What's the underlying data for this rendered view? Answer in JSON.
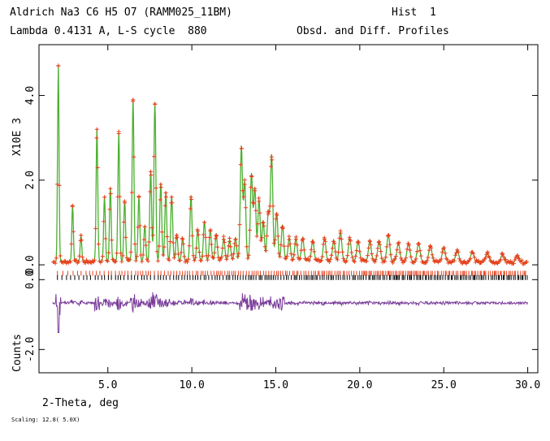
{
  "header": {
    "title_left": "Aldrich Na3 C6 H5 O7 (RAMM025_11BM)",
    "title_right": "Hist  1",
    "sub_left": "Lambda 0.4131 A, L-S cycle  880",
    "sub_right": "Obsd. and Diff. Profiles"
  },
  "footer": {
    "scaling": "Scaling: 12.8( 5.0X)"
  },
  "chart_data": {
    "type": "line",
    "xlabel": "2-Theta, deg",
    "ylabel_upper": "X10E  3",
    "ylabel_lower": "Counts",
    "xlim": [
      0.9,
      30.6
    ],
    "ylim": [
      -2.55,
      5.2
    ],
    "x_ticks": [
      "5.0",
      "10.0",
      "15.0",
      "20.0",
      "25.0",
      "30.0"
    ],
    "y_ticks": [
      "4.0",
      "2.0",
      "0.0",
      "0.0",
      "-2.0"
    ],
    "grid": false,
    "colors": {
      "observed": "#e8401c",
      "calculated": "#4cb030",
      "difference": "#7a3d9a",
      "ticks_phase1": "#e8401c",
      "ticks_phase2": "#000000"
    },
    "series": [
      {
        "role": "observed-calculated-profile",
        "baseline": 0.06,
        "peaks": [
          [
            2.05,
            4.7
          ],
          [
            2.9,
            1.4
          ],
          [
            3.4,
            0.7
          ],
          [
            4.35,
            3.2
          ],
          [
            4.8,
            1.6
          ],
          [
            5.15,
            1.8
          ],
          [
            5.65,
            3.1
          ],
          [
            6.0,
            1.5
          ],
          [
            6.5,
            3.9
          ],
          [
            6.85,
            1.6
          ],
          [
            7.2,
            0.9
          ],
          [
            7.55,
            2.2
          ],
          [
            7.8,
            3.8
          ],
          [
            8.15,
            1.9
          ],
          [
            8.45,
            1.7
          ],
          [
            8.8,
            1.6
          ],
          [
            9.1,
            0.7
          ],
          [
            9.45,
            0.6
          ],
          [
            9.95,
            1.6
          ],
          [
            10.35,
            0.8
          ],
          [
            10.75,
            1.0
          ],
          [
            11.1,
            0.8
          ],
          [
            11.45,
            0.7
          ],
          [
            11.9,
            0.6
          ],
          [
            12.25,
            0.55
          ],
          [
            12.6,
            0.6
          ],
          [
            12.95,
            2.75
          ],
          [
            13.15,
            1.9
          ],
          [
            13.55,
            2.1
          ],
          [
            13.75,
            1.75
          ],
          [
            14.0,
            1.5
          ],
          [
            14.25,
            1.0
          ],
          [
            14.55,
            1.2
          ],
          [
            14.75,
            2.55
          ],
          [
            15.05,
            1.2
          ],
          [
            15.4,
            0.9
          ],
          [
            15.8,
            0.6
          ],
          [
            16.2,
            0.6
          ],
          [
            16.6,
            0.6
          ],
          [
            17.2,
            0.55
          ],
          [
            17.9,
            0.6
          ],
          [
            18.45,
            0.55
          ],
          [
            18.85,
            0.75
          ],
          [
            19.4,
            0.6
          ],
          [
            19.9,
            0.55
          ],
          [
            20.6,
            0.55
          ],
          [
            21.15,
            0.55
          ],
          [
            21.7,
            0.7
          ],
          [
            22.3,
            0.5
          ],
          [
            22.9,
            0.5
          ],
          [
            23.5,
            0.5
          ],
          [
            24.2,
            0.45
          ],
          [
            25.0,
            0.4
          ],
          [
            25.8,
            0.35
          ],
          [
            26.7,
            0.3
          ],
          [
            27.6,
            0.28
          ],
          [
            28.5,
            0.25
          ],
          [
            29.4,
            0.22
          ]
        ]
      },
      {
        "role": "difference",
        "offset": -0.9
      }
    ],
    "reflection_ticks": [
      {
        "phase": 1,
        "y": -0.2,
        "range": [
          2.0,
          30.0
        ]
      },
      {
        "phase": 2,
        "y": -0.3,
        "range": [
          2.0,
          30.0
        ]
      }
    ]
  }
}
